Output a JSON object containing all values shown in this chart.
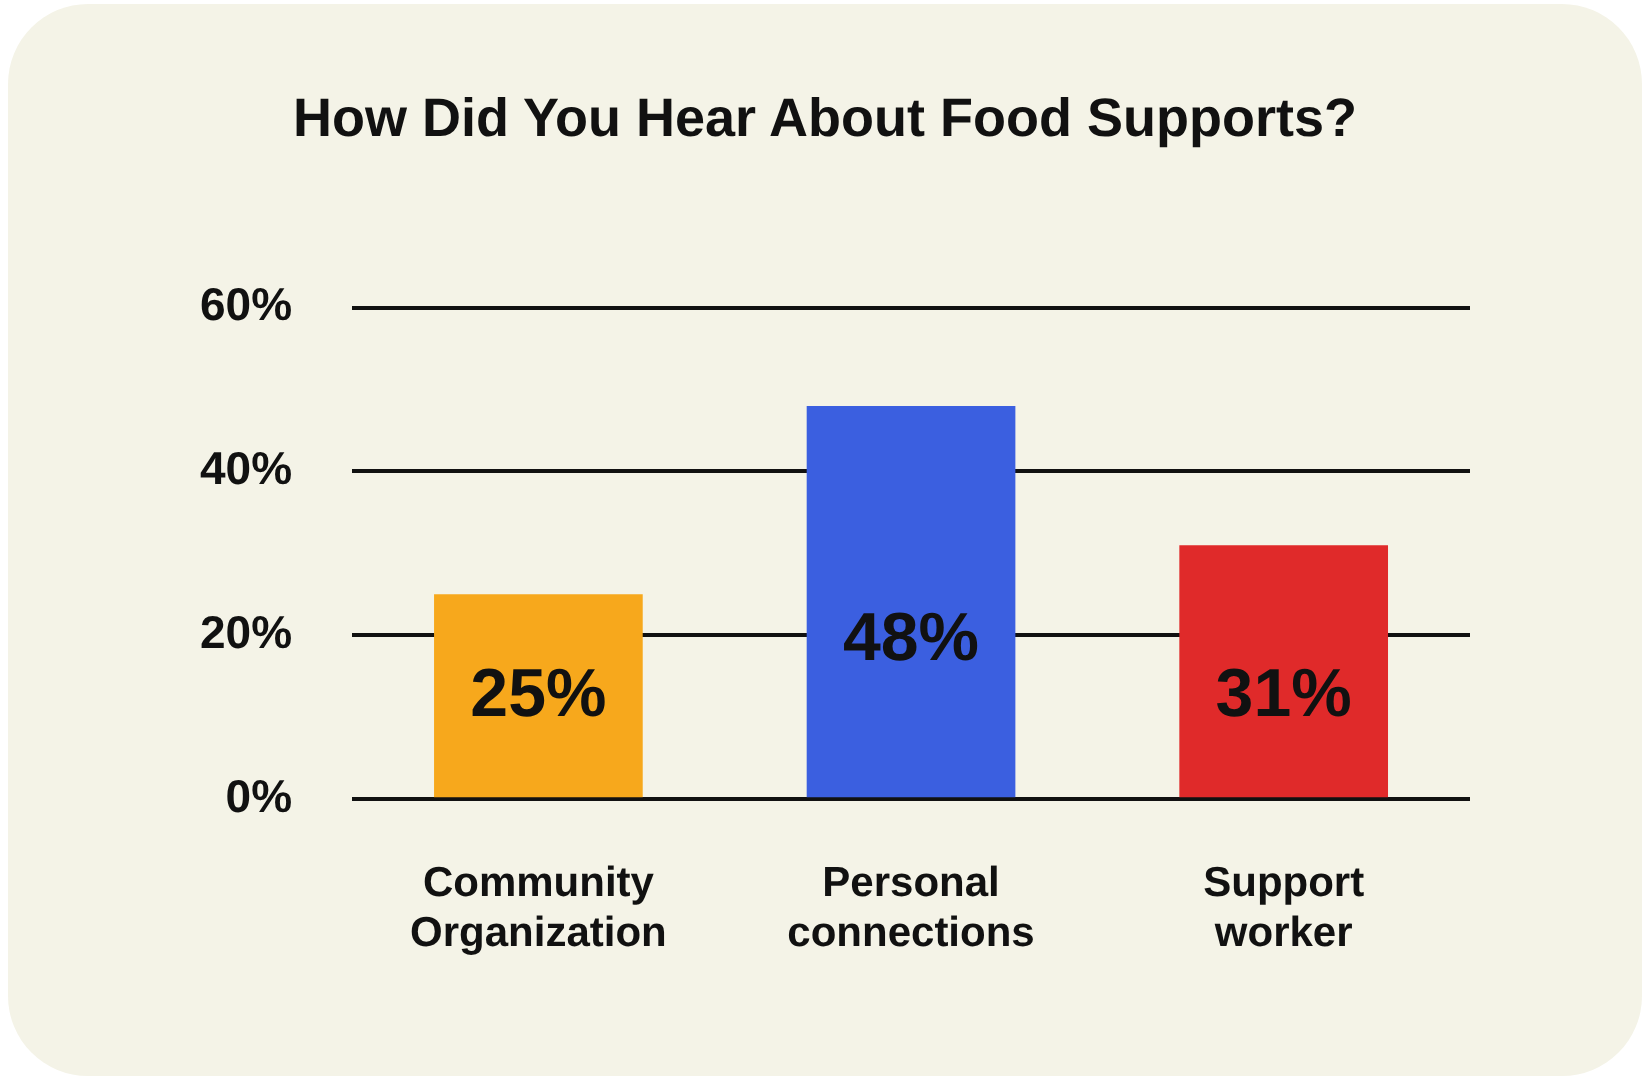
{
  "chart_data": {
    "type": "bar",
    "title": "How Did You Hear About Food Supports?",
    "categories": [
      "Community Organization",
      "Personal connections",
      "Support worker"
    ],
    "values": [
      25,
      48,
      31
    ],
    "colors": [
      "#f7a81c",
      "#3b5fe0",
      "#e02a2a"
    ],
    "ylim": [
      0,
      60
    ],
    "yticks": [
      {
        "value": 0,
        "label": "0%"
      },
      {
        "value": 20,
        "label": "20%"
      },
      {
        "value": 40,
        "label": "40%"
      },
      {
        "value": 60,
        "label": "60%"
      }
    ],
    "value_labels": [
      "25%",
      "48%",
      "31%"
    ],
    "grid": "y",
    "legend": false
  }
}
